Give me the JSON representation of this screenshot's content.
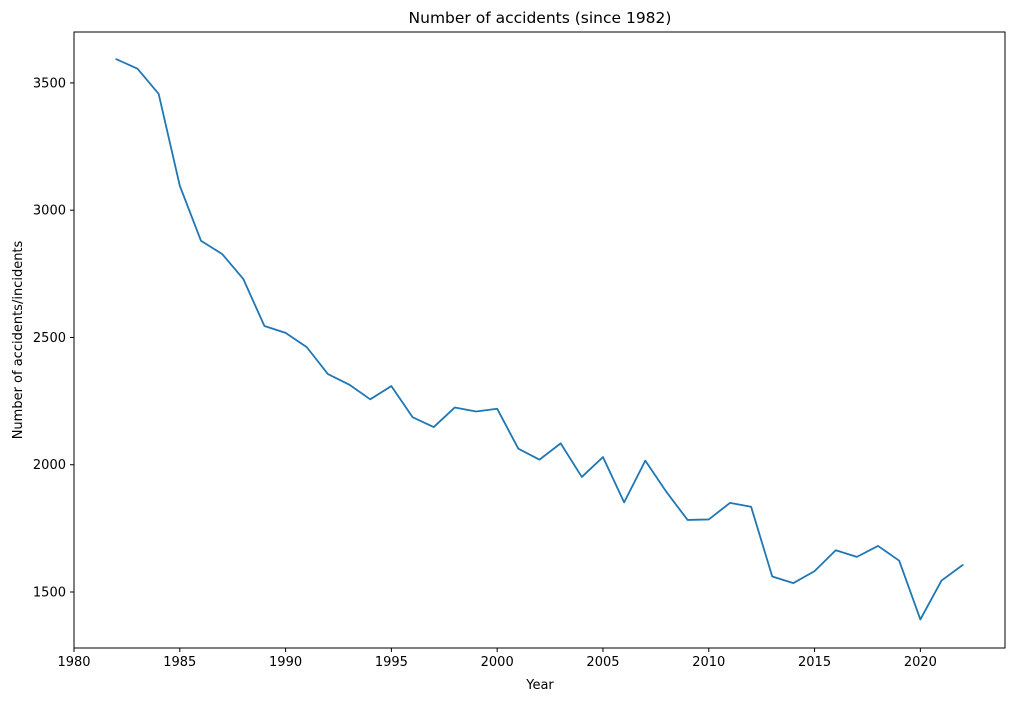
{
  "chart_data": {
    "type": "line",
    "title": "Number of accidents (since 1982)",
    "xlabel": "Year",
    "ylabel": "Number of accidents/incidents",
    "xlim": [
      1980,
      2024
    ],
    "ylim": [
      1280,
      3700
    ],
    "xticks": [
      1980,
      1985,
      1990,
      1995,
      2000,
      2005,
      2010,
      2015,
      2020
    ],
    "yticks": [
      1500,
      2000,
      2500,
      3000,
      3500
    ],
    "grid": false,
    "series": [
      {
        "color": "#1f77b4",
        "x": [
          1982,
          1983,
          1984,
          1985,
          1986,
          1987,
          1988,
          1989,
          1990,
          1991,
          1992,
          1993,
          1994,
          1995,
          1996,
          1997,
          1998,
          1999,
          2000,
          2001,
          2002,
          2003,
          2004,
          2005,
          2006,
          2007,
          2008,
          2009,
          2010,
          2011,
          2012,
          2013,
          2014,
          2015,
          2016,
          2017,
          2018,
          2019,
          2020,
          2021,
          2022
        ],
        "y": [
          3593,
          3556,
          3457,
          3096,
          2880,
          2828,
          2730,
          2545,
          2518,
          2462,
          2356,
          2315,
          2257,
          2309,
          2187,
          2148,
          2225,
          2209,
          2220,
          2063,
          2020,
          2084,
          1952,
          2030,
          1852,
          2016,
          1893,
          1783,
          1785,
          1850,
          1835,
          1561,
          1535,
          1582,
          1664,
          1638,
          1681,
          1623,
          1392,
          1545,
          1606
        ]
      }
    ]
  }
}
